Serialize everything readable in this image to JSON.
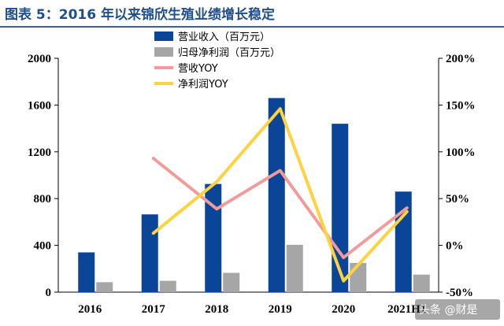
{
  "title": "图表 5：2016 年以来锦欣生殖业绩增长稳定",
  "watermark": "头条 @财是",
  "colors": {
    "revenue_bar": "#0a4597",
    "profit_bar": "#a6a6a6",
    "revenue_yoy_line": "#f29b9b",
    "profit_yoy_line": "#ffd23f",
    "title": "#1f4e8c"
  },
  "chart_data": {
    "type": "bar",
    "categories": [
      "2016",
      "2017",
      "2018",
      "2019",
      "2020",
      "2021H1"
    ],
    "series": [
      {
        "name": "营业收入（百万元）",
        "type": "bar",
        "axis": "left",
        "values": [
          340,
          665,
          925,
          1660,
          1440,
          860
        ]
      },
      {
        "name": "归母净利润（百万元）",
        "type": "bar",
        "axis": "left",
        "values": [
          85,
          97,
          165,
          405,
          250,
          150
        ]
      },
      {
        "name": "营收YOY",
        "type": "line",
        "axis": "right",
        "values": [
          null,
          0.93,
          0.39,
          0.8,
          -0.13,
          0.4
        ]
      },
      {
        "name": "净利润YOY",
        "type": "line",
        "axis": "right",
        "values": [
          null,
          0.13,
          0.68,
          1.46,
          -0.38,
          0.36
        ]
      }
    ],
    "yleft": {
      "ylim": [
        0,
        2000
      ],
      "ticks": [
        0,
        400,
        800,
        1200,
        1600,
        2000
      ]
    },
    "yright": {
      "ylim": [
        -0.5,
        2.0
      ],
      "ticks": [
        -0.5,
        0,
        0.5,
        1.0,
        1.5,
        2.0
      ],
      "tick_labels": [
        "-50%",
        "0%",
        "50%",
        "100%",
        "150%",
        "200%"
      ]
    },
    "legend_position": "top-center",
    "grid": false
  }
}
